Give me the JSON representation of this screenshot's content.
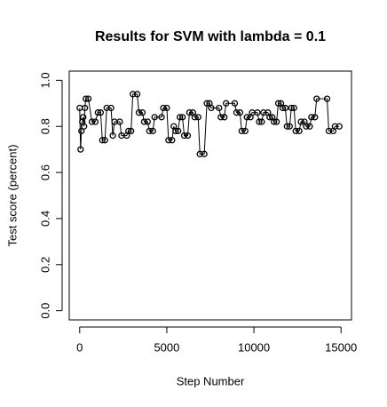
{
  "chart_data": {
    "type": "line",
    "title": "Results for SVM with lambda = 0.1",
    "x_label": "Step Number",
    "y_label": "Test score (percent)",
    "x": [
      0,
      50,
      100,
      150,
      200,
      250,
      300,
      350,
      500,
      700,
      900,
      1050,
      1200,
      1300,
      1450,
      1550,
      1800,
      1900,
      2000,
      2300,
      2400,
      2700,
      2800,
      2950,
      3050,
      3300,
      3400,
      3600,
      3700,
      3900,
      4000,
      4200,
      4300,
      4700,
      4800,
      5000,
      5100,
      5300,
      5400,
      5500,
      5650,
      5750,
      5900,
      6000,
      6200,
      6300,
      6500,
      6600,
      6800,
      6900,
      7150,
      7300,
      7450,
      7550,
      8000,
      8100,
      8300,
      8400,
      8900,
      9000,
      9200,
      9300,
      9500,
      9600,
      9800,
      9900,
      10200,
      10300,
      10450,
      10550,
      10800,
      10900,
      11050,
      11150,
      11300,
      11400,
      11550,
      11650,
      11800,
      11900,
      12050,
      12150,
      12300,
      12400,
      12600,
      12700,
      12900,
      13000,
      13200,
      13300,
      13500,
      13600,
      14200,
      14300,
      14550,
      14650,
      14900
    ],
    "series": [
      {
        "color": "#000000",
        "values": [
          0.88,
          0.7,
          0.78,
          0.82,
          0.84,
          0.8,
          0.88,
          0.92,
          0.92,
          0.82,
          0.82,
          0.86,
          0.86,
          0.74,
          0.74,
          0.88,
          0.88,
          0.76,
          0.82,
          0.82,
          0.76,
          0.76,
          0.78,
          0.78,
          0.94,
          0.94,
          0.86,
          0.86,
          0.82,
          0.82,
          0.78,
          0.78,
          0.84,
          0.84,
          0.88,
          0.88,
          0.74,
          0.74,
          0.8,
          0.78,
          0.78,
          0.84,
          0.84,
          0.76,
          0.76,
          0.86,
          0.86,
          0.84,
          0.84,
          0.68,
          0.68,
          0.9,
          0.9,
          0.88,
          0.88,
          0.84,
          0.84,
          0.9,
          0.9,
          0.86,
          0.86,
          0.78,
          0.78,
          0.84,
          0.84,
          0.86,
          0.86,
          0.82,
          0.82,
          0.86,
          0.86,
          0.84,
          0.84,
          0.82,
          0.82,
          0.9,
          0.9,
          0.88,
          0.88,
          0.8,
          0.8,
          0.88,
          0.88,
          0.78,
          0.78,
          0.82,
          0.82,
          0.8,
          0.8,
          0.84,
          0.84,
          0.92,
          0.92,
          0.78,
          0.78,
          0.8,
          0.8
        ]
      }
    ],
    "xlim": [
      -600,
      15600
    ],
    "ylim": [
      -0.04,
      1.04
    ],
    "xticks": [
      0,
      5000,
      10000,
      15000
    ],
    "yticks": [
      {
        "value": 0,
        "label": "0.0"
      },
      0.2,
      0.4,
      0.6,
      0.8,
      {
        "value": 1,
        "label": "1.0"
      }
    ]
  }
}
